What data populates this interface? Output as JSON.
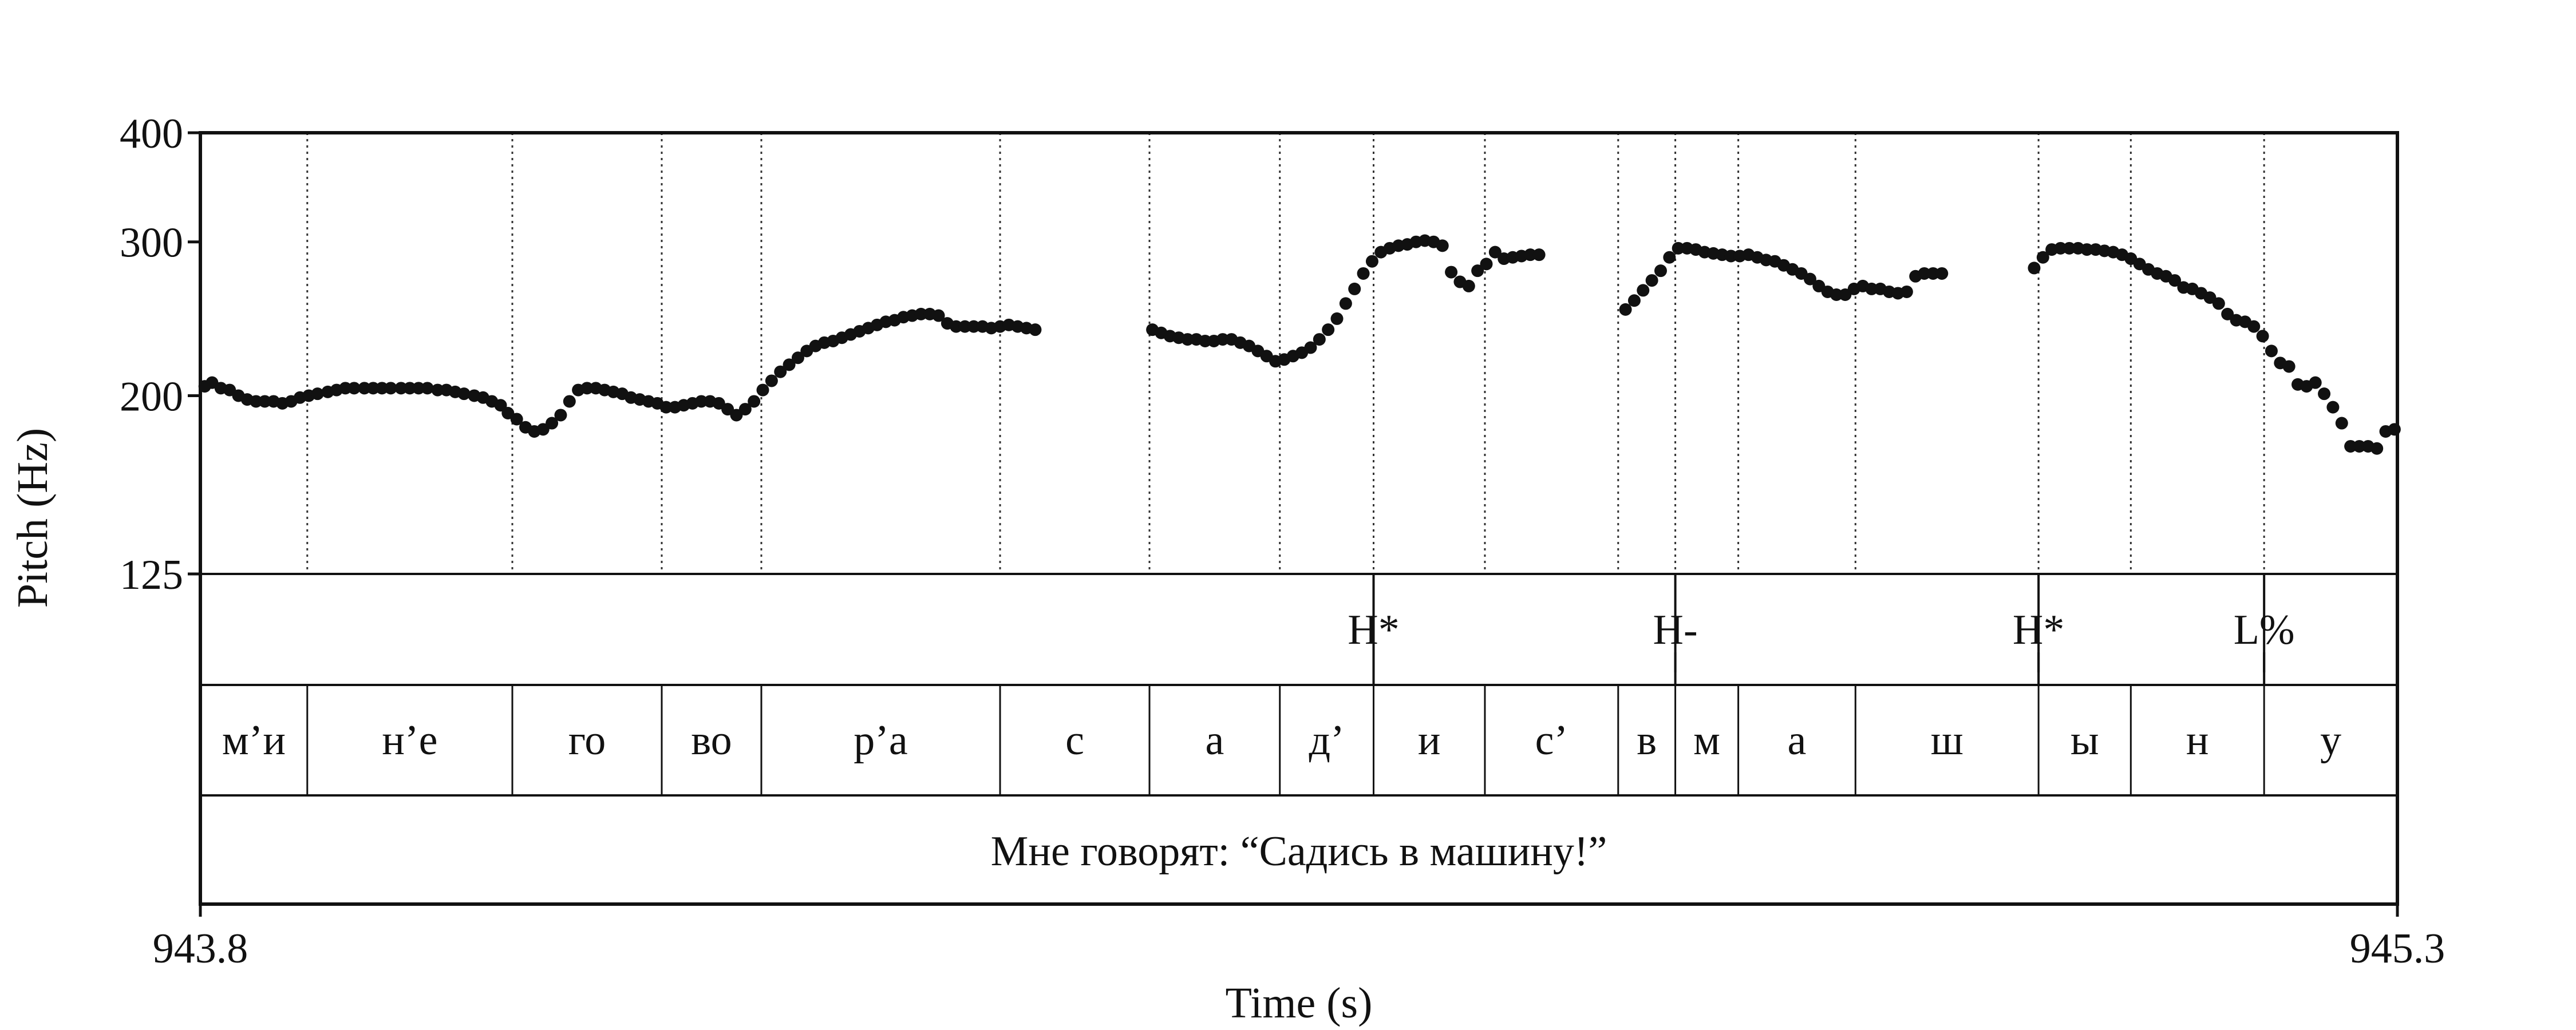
{
  "chart_data": {
    "type": "scatter",
    "xlabel": "Time (s)",
    "ylabel": "Pitch (Hz)",
    "xlim": [
      943.8,
      945.3
    ],
    "ylim": [
      125,
      400
    ],
    "x_ticks": [
      "943.8",
      "945.3"
    ],
    "y_ticks": [
      {
        "value": 400,
        "label": "400"
      },
      {
        "value": 300,
        "label": "300"
      },
      {
        "value": 200,
        "label": "200"
      },
      {
        "value": 125,
        "label": "125"
      }
    ],
    "grid": "dotted vertical lines at segment boundaries",
    "tones": [
      {
        "label": "H*",
        "time": 944.601
      },
      {
        "label": "H-",
        "time": 944.807
      },
      {
        "label": "H*",
        "time": 945.055
      },
      {
        "label": "L%",
        "time": 945.209
      }
    ],
    "segments": [
      {
        "label": "м’и",
        "start": 943.8,
        "end": 943.873
      },
      {
        "label": "н’е",
        "start": 943.873,
        "end": 944.013
      },
      {
        "label": "го",
        "start": 944.013,
        "end": 944.115
      },
      {
        "label": "во",
        "start": 944.115,
        "end": 944.183
      },
      {
        "label": "р’а",
        "start": 944.183,
        "end": 944.346
      },
      {
        "label": "с",
        "start": 944.346,
        "end": 944.448
      },
      {
        "label": "а",
        "start": 944.448,
        "end": 944.537
      },
      {
        "label": "д’",
        "start": 944.537,
        "end": 944.601
      },
      {
        "label": "и",
        "start": 944.601,
        "end": 944.677
      },
      {
        "label": "с’",
        "start": 944.677,
        "end": 944.768
      },
      {
        "label": "в",
        "start": 944.768,
        "end": 944.807
      },
      {
        "label": "м",
        "start": 944.807,
        "end": 944.85
      },
      {
        "label": "а",
        "start": 944.85,
        "end": 944.93
      },
      {
        "label": "ш",
        "start": 944.93,
        "end": 945.055
      },
      {
        "label": "ы",
        "start": 945.055,
        "end": 945.118
      },
      {
        "label": "н",
        "start": 945.118,
        "end": 945.209
      },
      {
        "label": "у",
        "start": 945.209,
        "end": 945.3
      }
    ],
    "sentence": "Мне говорят: “Садись в машину!”",
    "series": [
      {
        "points": [
          [
            943.803,
            205
          ],
          [
            943.808,
            207
          ],
          [
            943.814,
            204
          ],
          [
            943.82,
            203
          ],
          [
            943.826,
            200
          ],
          [
            943.832,
            198
          ],
          [
            943.838,
            197
          ],
          [
            943.844,
            197
          ],
          [
            943.85,
            197
          ],
          [
            943.856,
            196
          ],
          [
            943.862,
            197
          ],
          [
            943.868,
            199
          ],
          [
            943.874,
            200
          ],
          [
            943.88,
            201
          ],
          [
            943.887,
            202
          ],
          [
            943.893,
            203
          ],
          [
            943.899,
            204
          ],
          [
            943.905,
            204
          ],
          [
            943.912,
            204
          ],
          [
            943.918,
            204
          ],
          [
            943.924,
            204
          ],
          [
            943.93,
            204
          ],
          [
            943.937,
            204
          ],
          [
            943.943,
            204
          ],
          [
            943.949,
            204
          ],
          [
            943.955,
            204
          ],
          [
            943.962,
            203
          ],
          [
            943.968,
            203
          ],
          [
            943.974,
            202
          ],
          [
            943.98,
            201
          ],
          [
            943.987,
            200
          ],
          [
            943.993,
            199
          ],
          [
            943.999,
            197
          ],
          [
            944.005,
            195
          ],
          [
            944.01,
            191
          ],
          [
            944.016,
            188
          ],
          [
            944.022,
            184
          ],
          [
            944.028,
            182
          ],
          [
            944.034,
            183
          ],
          [
            944.04,
            186
          ],
          [
            944.046,
            190
          ],
          [
            944.052,
            197
          ],
          [
            944.058,
            203
          ],
          [
            944.064,
            204
          ],
          [
            944.07,
            204
          ],
          [
            944.076,
            203
          ],
          [
            944.082,
            202
          ],
          [
            944.088,
            201
          ],
          [
            944.094,
            199
          ],
          [
            944.1,
            198
          ],
          [
            944.106,
            197
          ],
          [
            944.112,
            196
          ],
          [
            944.118,
            194
          ],
          [
            944.124,
            194
          ],
          [
            944.13,
            195
          ],
          [
            944.136,
            196
          ],
          [
            944.142,
            197
          ],
          [
            944.148,
            197
          ],
          [
            944.154,
            196
          ],
          [
            944.16,
            193
          ],
          [
            944.166,
            190
          ],
          [
            944.172,
            193
          ],
          [
            944.178,
            197
          ],
          [
            944.184,
            203
          ],
          [
            944.19,
            208
          ],
          [
            944.196,
            213
          ],
          [
            944.202,
            217
          ],
          [
            944.208,
            221
          ],
          [
            944.214,
            225
          ],
          [
            944.22,
            228
          ],
          [
            944.226,
            230
          ],
          [
            944.232,
            231
          ],
          [
            944.238,
            233
          ],
          [
            944.244,
            235
          ],
          [
            944.25,
            237
          ],
          [
            944.256,
            239
          ],
          [
            944.262,
            241
          ],
          [
            944.268,
            243
          ],
          [
            944.274,
            244
          ],
          [
            944.28,
            246
          ],
          [
            944.286,
            247
          ],
          [
            944.292,
            248
          ],
          [
            944.298,
            248
          ],
          [
            944.304,
            247
          ],
          [
            944.31,
            242
          ],
          [
            944.316,
            240
          ],
          [
            944.322,
            240
          ],
          [
            944.328,
            240
          ],
          [
            944.334,
            240
          ],
          [
            944.34,
            239
          ],
          [
            944.346,
            240
          ],
          [
            944.352,
            241
          ],
          [
            944.358,
            240
          ],
          [
            944.364,
            239
          ],
          [
            944.37,
            238
          ],
          [
            944.45,
            238
          ],
          [
            944.456,
            236
          ],
          [
            944.462,
            234
          ],
          [
            944.468,
            233
          ],
          [
            944.474,
            232
          ],
          [
            944.48,
            232
          ],
          [
            944.486,
            231
          ],
          [
            944.492,
            231
          ],
          [
            944.498,
            232
          ],
          [
            944.504,
            232
          ],
          [
            944.51,
            230
          ],
          [
            944.516,
            228
          ],
          [
            944.522,
            225
          ],
          [
            944.528,
            222
          ],
          [
            944.534,
            219
          ],
          [
            944.54,
            220
          ],
          [
            944.546,
            222
          ],
          [
            944.552,
            224
          ],
          [
            944.558,
            227
          ],
          [
            944.564,
            232
          ],
          [
            944.57,
            238
          ],
          [
            944.576,
            245
          ],
          [
            944.582,
            255
          ],
          [
            944.588,
            265
          ],
          [
            944.594,
            276
          ],
          [
            944.6,
            285
          ],
          [
            944.606,
            292
          ],
          [
            944.612,
            295
          ],
          [
            944.618,
            297
          ],
          [
            944.624,
            298
          ],
          [
            944.63,
            300
          ],
          [
            944.636,
            301
          ],
          [
            944.642,
            300
          ],
          [
            944.648,
            297
          ],
          [
            944.654,
            277
          ],
          [
            944.66,
            270
          ],
          [
            944.666,
            267
          ],
          [
            944.672,
            278
          ],
          [
            944.678,
            283
          ],
          [
            944.684,
            292
          ],
          [
            944.69,
            287
          ],
          [
            944.696,
            288
          ],
          [
            944.702,
            289
          ],
          [
            944.708,
            290
          ],
          [
            944.714,
            290
          ],
          [
            944.773,
            251
          ],
          [
            944.779,
            257
          ],
          [
            944.785,
            264
          ],
          [
            944.791,
            271
          ],
          [
            944.797,
            278
          ],
          [
            944.803,
            288
          ],
          [
            944.809,
            295
          ],
          [
            944.815,
            295
          ],
          [
            944.821,
            294
          ],
          [
            944.827,
            292
          ],
          [
            944.833,
            291
          ],
          [
            944.839,
            290
          ],
          [
            944.845,
            289
          ],
          [
            944.851,
            289
          ],
          [
            944.857,
            290
          ],
          [
            944.863,
            288
          ],
          [
            944.869,
            286
          ],
          [
            944.875,
            285
          ],
          [
            944.881,
            282
          ],
          [
            944.887,
            279
          ],
          [
            944.893,
            276
          ],
          [
            944.899,
            272
          ],
          [
            944.905,
            267
          ],
          [
            944.911,
            263
          ],
          [
            944.917,
            261
          ],
          [
            944.923,
            261
          ],
          [
            944.929,
            265
          ],
          [
            944.935,
            267
          ],
          [
            944.941,
            265
          ],
          [
            944.947,
            265
          ],
          [
            944.953,
            263
          ],
          [
            944.959,
            262
          ],
          [
            944.965,
            263
          ],
          [
            944.971,
            274
          ],
          [
            944.977,
            276
          ],
          [
            944.983,
            276
          ],
          [
            944.989,
            276
          ],
          [
            945.052,
            280
          ],
          [
            945.058,
            288
          ],
          [
            945.064,
            294
          ],
          [
            945.07,
            295
          ],
          [
            945.076,
            295
          ],
          [
            945.082,
            295
          ],
          [
            945.088,
            294
          ],
          [
            945.094,
            294
          ],
          [
            945.1,
            293
          ],
          [
            945.106,
            292
          ],
          [
            945.112,
            290
          ],
          [
            945.118,
            287
          ],
          [
            945.124,
            283
          ],
          [
            945.13,
            279
          ],
          [
            945.136,
            276
          ],
          [
            945.142,
            274
          ],
          [
            945.148,
            271
          ],
          [
            945.154,
            266
          ],
          [
            945.16,
            265
          ],
          [
            945.166,
            262
          ],
          [
            945.172,
            259
          ],
          [
            945.178,
            255
          ],
          [
            945.184,
            248
          ],
          [
            945.19,
            244
          ],
          [
            945.196,
            243
          ],
          [
            945.202,
            240
          ],
          [
            945.208,
            234
          ],
          [
            945.214,
            225
          ],
          [
            945.22,
            218
          ],
          [
            945.226,
            216
          ],
          [
            945.232,
            206
          ],
          [
            945.238,
            205
          ],
          [
            945.244,
            207
          ],
          [
            945.25,
            201
          ],
          [
            945.256,
            194
          ],
          [
            945.262,
            186
          ],
          [
            945.268,
            175
          ],
          [
            945.274,
            175
          ],
          [
            945.28,
            175
          ],
          [
            945.286,
            174
          ],
          [
            945.292,
            182
          ],
          [
            945.298,
            183
          ]
        ]
      }
    ]
  }
}
